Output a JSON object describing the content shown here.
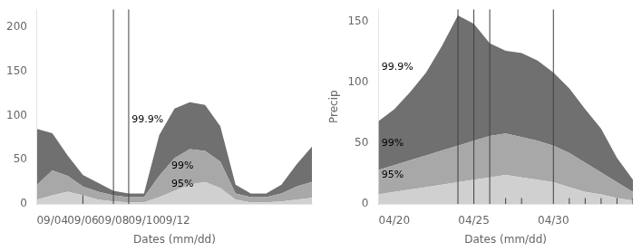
{
  "chart_data": [
    {
      "type": "area",
      "xlabel": "Dates (mm/dd)",
      "categories": [
        null,
        "09/04",
        null,
        "09/06",
        null,
        "09/08",
        null,
        "09/10",
        null,
        "09/12",
        null,
        null,
        null,
        null,
        null,
        null,
        null,
        null,
        null
      ],
      "series": [
        {
          "color": "#d0d0d0",
          "values": [
            5,
            10,
            14,
            10,
            5,
            3,
            2,
            2,
            8,
            15,
            22,
            25,
            18,
            5,
            2,
            2,
            3,
            5,
            7
          ]
        },
        {
          "color": "#a8a8a8",
          "values": [
            22,
            38,
            32,
            20,
            14,
            10,
            8,
            8,
            32,
            52,
            62,
            60,
            48,
            12,
            8,
            8,
            12,
            20,
            25
          ]
        },
        {
          "color": "#707070",
          "values": [
            85,
            80,
            55,
            33,
            24,
            15,
            12,
            12,
            78,
            108,
            115,
            112,
            88,
            22,
            12,
            12,
            22,
            45,
            65
          ]
        }
      ],
      "ylim": [
        0,
        220
      ],
      "yticks": [
        0,
        50,
        100,
        150,
        200
      ],
      "grid": false,
      "annotations": [
        {
          "text": "99.9%",
          "x": 6.2,
          "y": 92
        },
        {
          "text": "99%",
          "x": 8.8,
          "y": 40
        },
        {
          "text": "95%",
          "x": 8.8,
          "y": 20
        }
      ],
      "vlines": {
        "positions": [
          5,
          6
        ],
        "color": "#404040"
      },
      "short_vlines": {
        "positions": [
          3
        ],
        "height": 10,
        "color": "#404040"
      }
    },
    {
      "type": "area",
      "xlabel": "Dates (mm/dd)",
      "ylabel": "Precip",
      "categories": [
        null,
        "04/20",
        null,
        null,
        null,
        null,
        "04/25",
        null,
        null,
        null,
        null,
        "04/30",
        null,
        null,
        null,
        null,
        null
      ],
      "series": [
        {
          "color": "#d0d0d0",
          "values": [
            8,
            10,
            12,
            14,
            16,
            18,
            20,
            22,
            24,
            22,
            20,
            18,
            14,
            10,
            8,
            5,
            3
          ]
        },
        {
          "color": "#a8a8a8",
          "values": [
            28,
            32,
            36,
            40,
            44,
            48,
            52,
            56,
            58,
            55,
            52,
            48,
            42,
            34,
            26,
            18,
            10
          ]
        },
        {
          "color": "#707070",
          "values": [
            68,
            78,
            92,
            108,
            130,
            155,
            148,
            132,
            126,
            124,
            118,
            108,
            95,
            78,
            62,
            38,
            20
          ]
        }
      ],
      "ylim": [
        0,
        160
      ],
      "yticks": [
        0,
        50,
        100,
        150
      ],
      "grid": false,
      "annotations": [
        {
          "text": "99.9%",
          "x": 0.2,
          "y": 110
        },
        {
          "text": "99%",
          "x": 0.2,
          "y": 48
        },
        {
          "text": "95%",
          "x": 0.2,
          "y": 22
        }
      ],
      "vlines": {
        "positions": [
          5,
          6,
          7,
          11
        ],
        "color": "#404040"
      },
      "short_vlines": {
        "positions": [
          8,
          9,
          12,
          13,
          14,
          15,
          16
        ],
        "height": 5,
        "color": "#404040"
      }
    }
  ]
}
